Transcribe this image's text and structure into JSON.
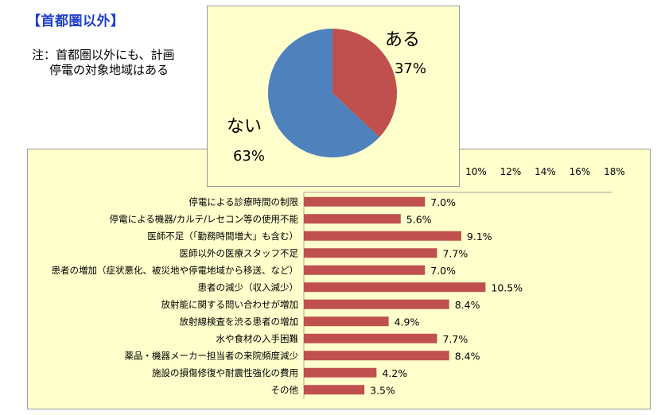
{
  "heading": "【首都圏以外】",
  "note": {
    "line1": "注：首都圏以外にも、計画",
    "line2": "停電の対象地域はある"
  },
  "chart_data": [
    {
      "type": "pie",
      "slices": [
        {
          "label": "ある",
          "value": 37,
          "value_label": "37%",
          "color": "#c0504d"
        },
        {
          "label": "ない",
          "value": 63,
          "value_label": "63%",
          "color": "#4f81bd"
        }
      ]
    },
    {
      "type": "bar",
      "orientation": "horizontal",
      "categories": [
        "停電による診療時間の制限",
        "停電による機器/カルテ/レセコン等の使用不能",
        "医師不足（「勤務時間増大」も含む）",
        "医師以外の医療スタッフ不足",
        "患者の増加（症状悪化、被災地や停電地域から移送、など）",
        "患者の減少（収入減少）",
        "放射能に関する問い合わせが増加",
        "放射線検査を渋る患者の増加",
        "水や食材の入手困難",
        "薬品・機器メーカー担当者の来院頻度減少",
        "施設の損傷修復や耐震性強化の費用",
        "その他"
      ],
      "values": [
        7.0,
        5.6,
        9.1,
        7.7,
        7.0,
        10.5,
        8.4,
        4.9,
        7.7,
        8.4,
        4.2,
        3.5
      ],
      "value_labels": [
        "7.0%",
        "5.6%",
        "9.1%",
        "7.7%",
        "7.0%",
        "10.5%",
        "8.4%",
        "4.9%",
        "7.7%",
        "8.4%",
        "4.2%",
        "3.5%"
      ],
      "xlim": [
        0,
        18
      ],
      "ticks": [
        "10%",
        "12%",
        "14%",
        "16%",
        "18%"
      ],
      "tick_values": [
        10,
        12,
        14,
        16,
        18
      ],
      "bar_color": "#c0504d"
    }
  ]
}
